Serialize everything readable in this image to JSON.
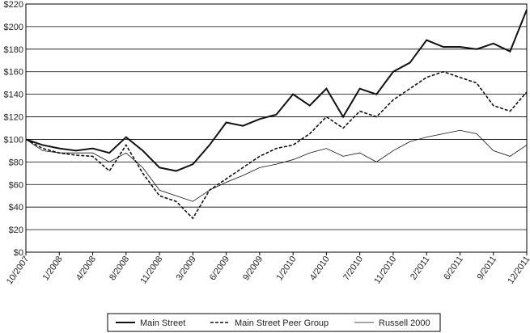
{
  "chart_data": {
    "type": "line",
    "categories": [
      "10/2007",
      null,
      "1/2008",
      null,
      "4/2008",
      null,
      "8/2008",
      null,
      "11/2008",
      null,
      "3/2009",
      null,
      "6/2009",
      null,
      "9/2009",
      null,
      "1/2010",
      null,
      "4/2010",
      null,
      "7/2010",
      null,
      "11/2010",
      null,
      "2/2011",
      null,
      "6/2011",
      null,
      "9/2011",
      null,
      "12/2011"
    ],
    "series": [
      {
        "name": "Main Street",
        "color": "#111111",
        "line_style": "solid",
        "values": [
          100,
          95,
          92,
          90,
          92,
          88,
          102,
          90,
          75,
          72,
          78,
          95,
          115,
          112,
          118,
          122,
          140,
          130,
          145,
          120,
          145,
          140,
          160,
          168,
          188,
          182,
          182,
          180,
          185,
          178,
          215
        ]
      },
      {
        "name": "Main Street Peer Group",
        "color": "#111111",
        "line_style": "dashed",
        "values": [
          100,
          92,
          88,
          86,
          85,
          72,
          95,
          70,
          50,
          45,
          30,
          55,
          65,
          75,
          85,
          92,
          95,
          105,
          120,
          110,
          125,
          120,
          135,
          145,
          155,
          160,
          155,
          150,
          130,
          125,
          142
        ]
      },
      {
        "name": "Russell 2000",
        "color": "#111111",
        "line_style": "thin",
        "values": [
          100,
          90,
          88,
          88,
          88,
          80,
          88,
          75,
          55,
          50,
          45,
          55,
          62,
          68,
          75,
          78,
          82,
          88,
          92,
          85,
          88,
          80,
          90,
          98,
          102,
          105,
          108,
          105,
          90,
          85,
          95
        ]
      }
    ],
    "ylim": [
      0,
      220
    ],
    "yticks": [
      {
        "value": 0,
        "label": "$0"
      },
      {
        "value": 20,
        "label": "$20"
      },
      {
        "value": 40,
        "label": "$40"
      },
      {
        "value": 60,
        "label": "$60"
      },
      {
        "value": 80,
        "label": "$80"
      },
      {
        "value": 100,
        "label": "$100"
      },
      {
        "value": 120,
        "label": "$120"
      },
      {
        "value": 140,
        "label": "$140"
      },
      {
        "value": 160,
        "label": "$160"
      },
      {
        "value": 180,
        "label": "$180"
      },
      {
        "value": 200,
        "label": "$200"
      },
      {
        "value": 220,
        "label": "$220"
      }
    ],
    "grid": true,
    "legend": "bottom"
  }
}
